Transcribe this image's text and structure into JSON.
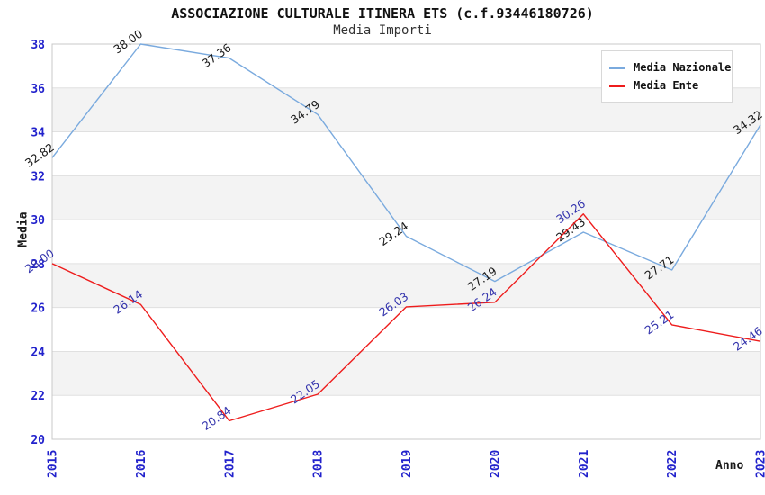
{
  "chart_data": {
    "type": "line",
    "title": "ASSOCIAZIONE CULTURALE ITINERA ETS (c.f.93446180726)",
    "subtitle": "Media Importi",
    "xlabel": "Anno",
    "ylabel": "Media",
    "categories": [
      "2015",
      "2016",
      "2017",
      "2018",
      "2019",
      "2020",
      "2021",
      "2022",
      "2023"
    ],
    "series": [
      {
        "name": "Media Nazionale",
        "color": "#7aaade",
        "label_color": "#1a1a1a",
        "values": [
          32.82,
          38.0,
          37.36,
          34.79,
          29.24,
          27.19,
          29.43,
          27.71,
          34.32
        ]
      },
      {
        "name": "Media Ente",
        "color": "#ee1c1c",
        "label_color": "#3434ad",
        "values": [
          28.0,
          26.14,
          20.84,
          22.05,
          26.03,
          26.24,
          30.26,
          25.21,
          24.46
        ]
      }
    ],
    "ylim": [
      20,
      38
    ],
    "ytick_step": 2,
    "value_label_decimals": 2,
    "grid": true,
    "legend_position": "top-right",
    "colors": {
      "tick_label": "#2222cc",
      "band_gray": "#f3f3f3",
      "gridline": "#e0e0e0",
      "plot_border": "#c8c8c8",
      "background": "#ffffff"
    }
  }
}
